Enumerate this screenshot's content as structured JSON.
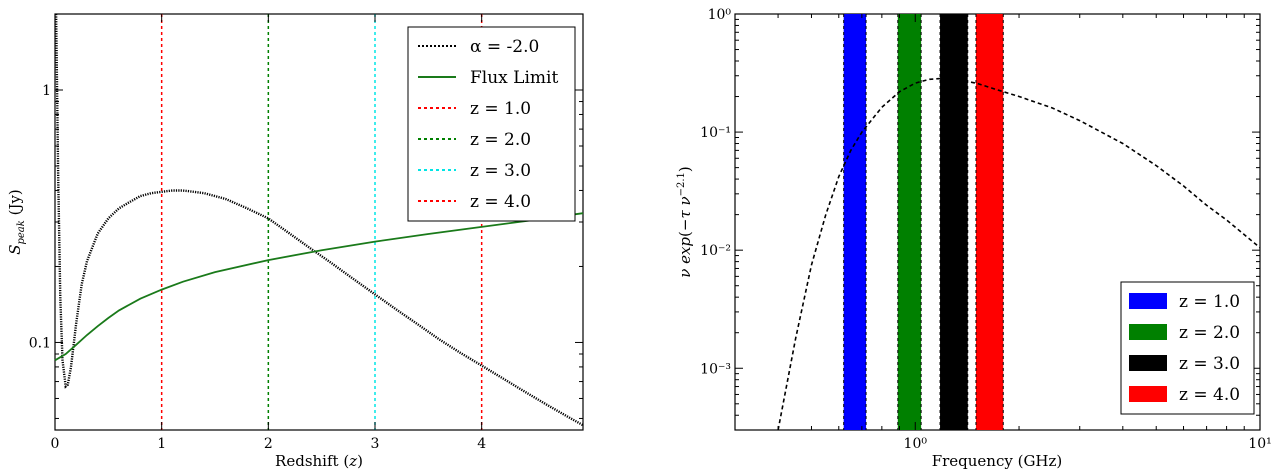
{
  "chart_data": [
    {
      "type": "line",
      "xlabel": "Redshift (z)",
      "ylabel": "S_peak (Jy)",
      "xlim": [
        0,
        4.95
      ],
      "ylim": [
        0.045,
        2.0
      ],
      "yscale": "log",
      "x_ticks": [
        {
          "value": 0,
          "label": "0"
        },
        {
          "value": 1,
          "label": "1"
        },
        {
          "value": 2,
          "label": "2"
        },
        {
          "value": 3,
          "label": "3"
        },
        {
          "value": 4,
          "label": "4"
        }
      ],
      "y_ticks": [
        {
          "value": 0.1,
          "label": "0.1"
        },
        {
          "value": 1,
          "label": "1"
        }
      ],
      "legend_position": "top-right",
      "series": [
        {
          "name": "α = -2.0",
          "color": "#000000",
          "style": "dotted",
          "x": [
            0.01,
            0.02,
            0.03,
            0.05,
            0.07,
            0.1,
            0.12,
            0.15,
            0.2,
            0.25,
            0.3,
            0.4,
            0.5,
            0.6,
            0.7,
            0.8,
            0.9,
            1.0,
            1.1,
            1.2,
            1.3,
            1.4,
            1.5,
            1.6,
            1.8,
            2.0,
            2.2,
            2.4,
            2.6,
            2.8,
            3.0,
            3.2,
            3.4,
            3.6,
            3.8,
            4.0,
            4.2,
            4.4,
            4.6,
            4.8,
            4.95
          ],
          "y": [
            2.0,
            1.0,
            0.45,
            0.15,
            0.085,
            0.067,
            0.068,
            0.08,
            0.12,
            0.17,
            0.21,
            0.27,
            0.31,
            0.34,
            0.36,
            0.38,
            0.39,
            0.395,
            0.4,
            0.4,
            0.395,
            0.39,
            0.38,
            0.37,
            0.34,
            0.31,
            0.27,
            0.235,
            0.205,
            0.178,
            0.155,
            0.135,
            0.118,
            0.103,
            0.091,
            0.081,
            0.072,
            0.064,
            0.057,
            0.051,
            0.047
          ]
        },
        {
          "name": "Flux Limit",
          "color": "#1a7a1a",
          "style": "solid",
          "x": [
            0,
            0.1,
            0.2,
            0.3,
            0.4,
            0.5,
            0.6,
            0.8,
            1.0,
            1.2,
            1.5,
            2.0,
            2.5,
            3.0,
            3.5,
            4.0,
            4.5,
            4.95
          ],
          "y": [
            0.085,
            0.09,
            0.098,
            0.107,
            0.116,
            0.125,
            0.134,
            0.149,
            0.162,
            0.174,
            0.19,
            0.212,
            0.232,
            0.251,
            0.269,
            0.287,
            0.306,
            0.325
          ]
        }
      ],
      "vlines": [
        {
          "name": "z = 1.0",
          "x": 1.0,
          "color": "#ff0000"
        },
        {
          "name": "z = 2.0",
          "x": 2.0,
          "color": "#008000"
        },
        {
          "name": "z = 3.0",
          "x": 3.0,
          "color": "#00e5e5"
        },
        {
          "name": "z = 4.0",
          "x": 4.0,
          "color": "#ff0000"
        }
      ]
    },
    {
      "type": "line",
      "xlabel": "Frequency (GHz)",
      "ylabel": "ν exp(−τ ν^−2.1)",
      "xscale": "log",
      "yscale": "log",
      "xlim": [
        0.3,
        10
      ],
      "ylim": [
        0.0003,
        1.0
      ],
      "x_ticks": [
        {
          "value": 1,
          "label": "10⁰"
        },
        {
          "value": 10,
          "label": "10¹"
        }
      ],
      "y_ticks": [
        {
          "value": 0.001,
          "label": "10⁻³"
        },
        {
          "value": 0.01,
          "label": "10⁻²"
        },
        {
          "value": 0.1,
          "label": "10⁻¹"
        },
        {
          "value": 1,
          "label": "10⁰"
        }
      ],
      "legend_position": "bottom-right",
      "series": [
        {
          "name": "",
          "color": "#000000",
          "style": "dashed",
          "x": [
            0.4,
            0.45,
            0.5,
            0.55,
            0.6,
            0.65,
            0.7,
            0.8,
            0.9,
            1.0,
            1.1,
            1.2,
            1.3,
            1.5,
            1.8,
            2.0,
            2.5,
            3.0,
            4.0,
            5.0,
            6.0,
            7.0,
            8.0,
            10.0
          ],
          "y": [
            0.0003,
            0.0018,
            0.0075,
            0.02,
            0.042,
            0.07,
            0.1,
            0.162,
            0.22,
            0.26,
            0.28,
            0.285,
            0.28,
            0.26,
            0.22,
            0.2,
            0.16,
            0.125,
            0.08,
            0.052,
            0.035,
            0.024,
            0.018,
            0.0105
          ]
        }
      ],
      "bands": [
        {
          "name": "z = 1.0",
          "x0": 0.62,
          "x1": 0.72,
          "color": "#0000ff"
        },
        {
          "name": "z = 2.0",
          "x0": 0.89,
          "x1": 1.04,
          "color": "#008000"
        },
        {
          "name": "z = 3.0",
          "x0": 1.18,
          "x1": 1.42,
          "color": "#000000"
        },
        {
          "name": "z = 4.0",
          "x0": 1.5,
          "x1": 1.8,
          "color": "#ff0000"
        }
      ]
    }
  ]
}
